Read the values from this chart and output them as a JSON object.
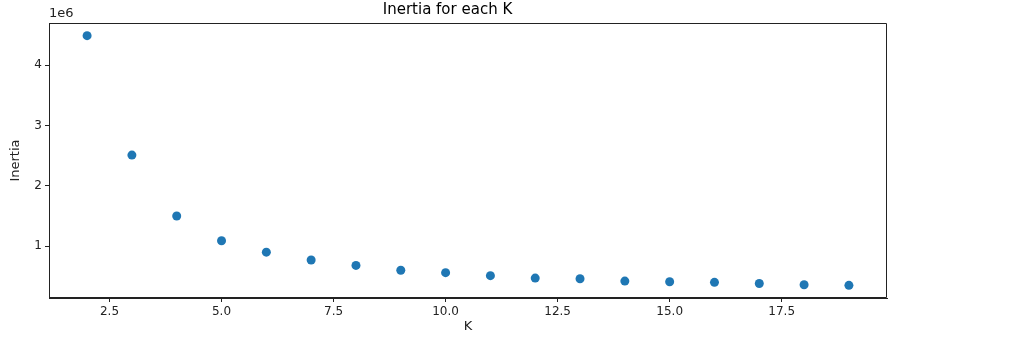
{
  "chart_data": {
    "type": "scatter",
    "title": "Inertia for each K",
    "xlabel": "K",
    "ylabel": "Inertia",
    "annotations": [
      "1e6"
    ],
    "x": [
      2,
      3,
      4,
      5,
      6,
      7,
      8,
      9,
      10,
      11,
      12,
      13,
      14,
      15,
      16,
      17,
      18,
      19
    ],
    "series": [
      {
        "color": "#1f77b4",
        "values": [
          4.49,
          2.51,
          1.5,
          1.09,
          0.9,
          0.77,
          0.68,
          0.6,
          0.56,
          0.51,
          0.47,
          0.46,
          0.42,
          0.41,
          0.4,
          0.38,
          0.36,
          0.35
        ]
      }
    ],
    "xlim": [
      1.15,
      19.85
    ],
    "xticks": [
      2.5,
      {
        "value": 5,
        "label": "5.0"
      },
      7.5,
      {
        "value": 10,
        "label": "10.0"
      },
      12.5,
      {
        "value": 15,
        "label": "15.0"
      },
      17.5
    ],
    "ylim": [
      0.14,
      4.7
    ],
    "yticks": [
      1,
      2,
      3,
      4
    ],
    "grid": false,
    "legend": false,
    "marker": "circle"
  }
}
